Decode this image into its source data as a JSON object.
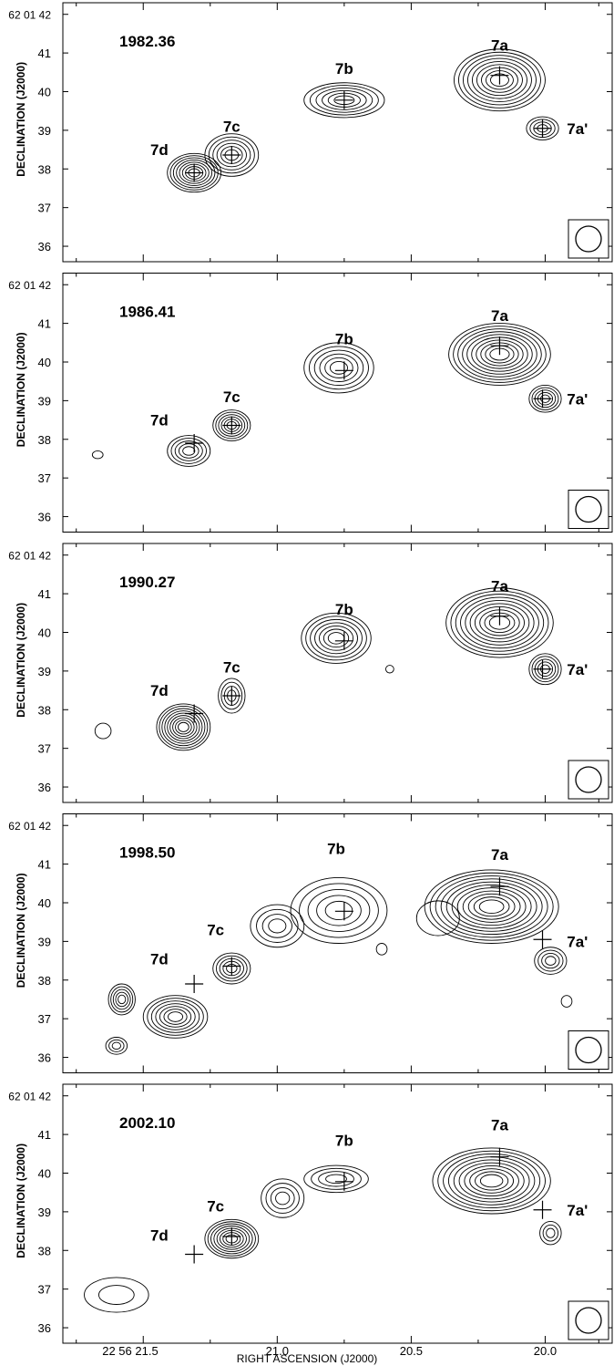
{
  "chart_data": {
    "type": "contour",
    "xlabel": "RIGHT ASCENSION (J2000)",
    "ylabel": "DECLINATION (J2000)",
    "x_ticks": [
      "22 56 21.5",
      "21.0",
      "20.5",
      "20.0"
    ],
    "x_tick_values": [
      21.5,
      21.0,
      20.5,
      20.0
    ],
    "xlim": [
      21.8,
      19.75
    ],
    "ylim": [
      35.6,
      42.3
    ],
    "y_top_label": "62 01 42",
    "y_ticks": [
      "41",
      "40",
      "39",
      "38",
      "37",
      "36"
    ],
    "y_tick_values": [
      41,
      40,
      39,
      38,
      37,
      36
    ],
    "reference_positions": [
      {
        "name": "7a",
        "ra": 20.17,
        "dec": 40.42
      },
      {
        "name": "7a'",
        "ra": 20.01,
        "dec": 39.05
      },
      {
        "name": "7b",
        "ra": 20.75,
        "dec": 39.78
      },
      {
        "name": "7c",
        "ra": 21.17,
        "dec": 38.36
      },
      {
        "name": "7d",
        "ra": 21.31,
        "dec": 37.9
      }
    ],
    "panels": [
      {
        "epoch": "1982.36",
        "labels": [
          {
            "text": "7a",
            "ra": 20.17,
            "dec": 41.2
          },
          {
            "text": "7a'",
            "ra": 19.88,
            "dec": 39.05
          },
          {
            "text": "7b",
            "ra": 20.75,
            "dec": 40.6
          },
          {
            "text": "7c",
            "ra": 21.17,
            "dec": 39.1
          },
          {
            "text": "7d",
            "ra": 21.44,
            "dec": 38.5
          }
        ],
        "sources": [
          {
            "ra": 20.17,
            "dec": 40.3,
            "sx": 0.17,
            "sy": 0.8,
            "n": 9
          },
          {
            "ra": 20.01,
            "dec": 39.05,
            "sx": 0.06,
            "sy": 0.3,
            "n": 4
          },
          {
            "ra": 20.75,
            "dec": 39.78,
            "sx": 0.15,
            "sy": 0.45,
            "n": 6
          },
          {
            "ra": 21.17,
            "dec": 38.36,
            "sx": 0.1,
            "sy": 0.55,
            "n": 6
          },
          {
            "ra": 21.31,
            "dec": 37.9,
            "sx": 0.1,
            "sy": 0.5,
            "n": 8
          }
        ]
      },
      {
        "epoch": "1986.41",
        "labels": [
          {
            "text": "7a",
            "ra": 20.17,
            "dec": 41.2
          },
          {
            "text": "7a'",
            "ra": 19.88,
            "dec": 39.05
          },
          {
            "text": "7b",
            "ra": 20.75,
            "dec": 40.6
          },
          {
            "text": "7c",
            "ra": 21.17,
            "dec": 39.1
          },
          {
            "text": "7d",
            "ra": 21.44,
            "dec": 38.5
          }
        ],
        "sources": [
          {
            "ra": 20.17,
            "dec": 40.2,
            "sx": 0.19,
            "sy": 0.8,
            "n": 10
          },
          {
            "ra": 20.0,
            "dec": 39.05,
            "sx": 0.06,
            "sy": 0.35,
            "n": 5
          },
          {
            "ra": 20.77,
            "dec": 39.85,
            "sx": 0.13,
            "sy": 0.65,
            "n": 6
          },
          {
            "ra": 21.17,
            "dec": 38.36,
            "sx": 0.07,
            "sy": 0.4,
            "n": 6
          },
          {
            "ra": 21.33,
            "dec": 37.7,
            "sx": 0.08,
            "sy": 0.4,
            "n": 5
          },
          {
            "ra": 21.67,
            "dec": 37.6,
            "sx": 0.02,
            "sy": 0.1,
            "n": 1
          }
        ]
      },
      {
        "epoch": "1990.27",
        "labels": [
          {
            "text": "7a",
            "ra": 20.17,
            "dec": 41.2
          },
          {
            "text": "7a'",
            "ra": 19.88,
            "dec": 39.05
          },
          {
            "text": "7b",
            "ra": 20.75,
            "dec": 40.6
          },
          {
            "text": "7c",
            "ra": 21.17,
            "dec": 39.1
          },
          {
            "text": "7d",
            "ra": 21.44,
            "dec": 38.5
          }
        ],
        "sources": [
          {
            "ra": 20.17,
            "dec": 40.25,
            "sx": 0.2,
            "sy": 0.9,
            "n": 10
          },
          {
            "ra": 20.0,
            "dec": 39.05,
            "sx": 0.06,
            "sy": 0.4,
            "n": 5
          },
          {
            "ra": 20.78,
            "dec": 39.85,
            "sx": 0.13,
            "sy": 0.65,
            "n": 7
          },
          {
            "ra": 21.17,
            "dec": 38.36,
            "sx": 0.05,
            "sy": 0.45,
            "n": 4
          },
          {
            "ra": 21.35,
            "dec": 37.55,
            "sx": 0.1,
            "sy": 0.6,
            "n": 9
          },
          {
            "ra": 21.65,
            "dec": 37.45,
            "sx": 0.03,
            "sy": 0.2,
            "n": 1
          },
          {
            "ra": 20.58,
            "dec": 39.05,
            "sx": 0.015,
            "sy": 0.1,
            "n": 1
          }
        ]
      },
      {
        "epoch": "1998.50",
        "labels": [
          {
            "text": "7a",
            "ra": 20.17,
            "dec": 41.25
          },
          {
            "text": "7a'",
            "ra": 19.88,
            "dec": 39.0
          },
          {
            "text": "7b",
            "ra": 20.78,
            "dec": 41.4
          },
          {
            "text": "7c",
            "ra": 21.23,
            "dec": 39.3
          },
          {
            "text": "7d",
            "ra": 21.44,
            "dec": 38.55
          }
        ],
        "sources": [
          {
            "ra": 20.2,
            "dec": 39.9,
            "sx": 0.25,
            "sy": 0.95,
            "n": 11
          },
          {
            "ra": 19.98,
            "dec": 38.5,
            "sx": 0.06,
            "sy": 0.35,
            "n": 4
          },
          {
            "ra": 20.77,
            "dec": 39.8,
            "sx": 0.18,
            "sy": 0.85,
            "n": 5
          },
          {
            "ra": 21.0,
            "dec": 39.4,
            "sx": 0.1,
            "sy": 0.55,
            "n": 4
          },
          {
            "ra": 21.17,
            "dec": 38.3,
            "sx": 0.07,
            "sy": 0.4,
            "n": 5
          },
          {
            "ra": 21.38,
            "dec": 37.05,
            "sx": 0.12,
            "sy": 0.55,
            "n": 7
          },
          {
            "ra": 21.58,
            "dec": 37.5,
            "sx": 0.05,
            "sy": 0.4,
            "n": 5
          },
          {
            "ra": 21.6,
            "dec": 36.3,
            "sx": 0.04,
            "sy": 0.22,
            "n": 3
          },
          {
            "ra": 20.61,
            "dec": 38.8,
            "sx": 0.02,
            "sy": 0.15,
            "n": 1
          },
          {
            "ra": 20.4,
            "dec": 39.6,
            "sx": 0.08,
            "sy": 0.45,
            "n": 1
          },
          {
            "ra": 19.92,
            "dec": 37.45,
            "sx": 0.02,
            "sy": 0.15,
            "n": 1
          }
        ]
      },
      {
        "epoch": "2002.10",
        "labels": [
          {
            "text": "7a",
            "ra": 20.17,
            "dec": 41.25
          },
          {
            "text": "7a'",
            "ra": 19.88,
            "dec": 39.05
          },
          {
            "text": "7b",
            "ra": 20.75,
            "dec": 40.85
          },
          {
            "text": "7c",
            "ra": 21.23,
            "dec": 39.15
          },
          {
            "text": "7d",
            "ra": 21.44,
            "dec": 38.4
          }
        ],
        "sources": [
          {
            "ra": 20.2,
            "dec": 39.8,
            "sx": 0.22,
            "sy": 0.85,
            "n": 10
          },
          {
            "ra": 19.98,
            "dec": 38.45,
            "sx": 0.04,
            "sy": 0.3,
            "n": 3
          },
          {
            "ra": 20.78,
            "dec": 39.85,
            "sx": 0.12,
            "sy": 0.35,
            "n": 4
          },
          {
            "ra": 20.98,
            "dec": 39.35,
            "sx": 0.08,
            "sy": 0.5,
            "n": 4
          },
          {
            "ra": 21.17,
            "dec": 38.3,
            "sx": 0.1,
            "sy": 0.5,
            "n": 8
          },
          {
            "ra": 21.6,
            "dec": 36.85,
            "sx": 0.12,
            "sy": 0.45,
            "n": 2
          }
        ]
      }
    ]
  }
}
